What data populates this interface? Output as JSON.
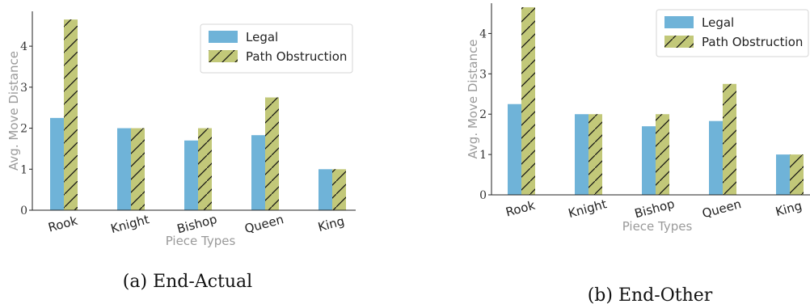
{
  "colors": {
    "legal": "#6fb3d8",
    "path_obstruction": "#c2c879",
    "hatch": "#111111",
    "axis": "#222222"
  },
  "chart_data": [
    {
      "type": "bar",
      "caption": "(a) End-Actual",
      "categories": [
        "Rook",
        "Knight",
        "Bishop",
        "Queen",
        "King"
      ],
      "series": [
        {
          "name": "Legal",
          "values": [
            2.25,
            2.0,
            1.7,
            1.83,
            1.0
          ]
        },
        {
          "name": "Path Obstruction",
          "values": [
            4.65,
            2.0,
            2.0,
            2.75,
            1.0
          ]
        }
      ],
      "xlabel": "Piece Types",
      "ylabel": "Avg. Move Distance",
      "ylim": [
        0,
        4.85
      ],
      "yticks": [
        0,
        1,
        2,
        3,
        4
      ],
      "legend": "top-right",
      "grid": false
    },
    {
      "type": "bar",
      "caption": "(b) End-Other",
      "categories": [
        "Rook",
        "Knight",
        "Bishop",
        "Queen",
        "King"
      ],
      "series": [
        {
          "name": "Legal",
          "values": [
            2.25,
            2.0,
            1.7,
            1.83,
            1.0
          ]
        },
        {
          "name": "Path Obstruction",
          "values": [
            4.65,
            2.0,
            2.0,
            2.75,
            1.0
          ]
        }
      ],
      "xlabel": "Piece Types",
      "ylabel": "Avg. Move Distance",
      "ylim": [
        0,
        4.75
      ],
      "yticks": [
        0,
        1,
        2,
        3,
        4
      ],
      "legend": "top-right",
      "grid": false
    }
  ]
}
